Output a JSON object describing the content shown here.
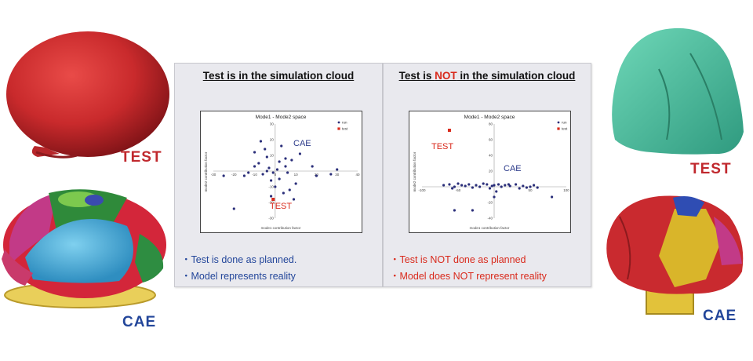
{
  "labels": {
    "left_test": "TEST",
    "left_cae": "CAE",
    "right_test": "TEST",
    "right_cae": "CAE"
  },
  "panels": [
    {
      "title_pre": "Test is in the simulation cloud",
      "title_hl": "",
      "title_post": "",
      "bullets": [
        "・Test is done as planned.",
        "・Model represents reality"
      ]
    },
    {
      "title_pre": "Test is ",
      "title_hl": "NOT",
      "title_post": " in the simulation cloud",
      "bullets": [
        "・Test is NOT done as planned",
        "・Model does NOT represent reality"
      ]
    }
  ],
  "chart_data": [
    {
      "type": "scatter",
      "title": "Mode1 - Mode2 space",
      "xlabel": "mode1 contribution factor",
      "ylabel": "mode2 contribution factor",
      "xlim": [
        -30,
        40
      ],
      "ylim": [
        -30,
        30
      ],
      "xticks": [
        -30,
        -20,
        -10,
        0,
        10,
        20,
        30,
        40
      ],
      "yticks": [
        -30,
        -20,
        -10,
        10,
        20,
        30
      ],
      "legend": [
        "run",
        "test"
      ],
      "legend_position": "top-right",
      "annotations": [
        "CAE",
        "TEST"
      ],
      "colors": {
        "run": "#2b2f7a",
        "test": "#d92a1c",
        "cae_label": "#2b3a8a",
        "test_label": "#d92a1c"
      },
      "series": [
        {
          "name": "run",
          "x": [
            -25,
            -13,
            -10,
            -8,
            -6,
            -4,
            -3,
            -2,
            -1,
            1,
            2,
            3,
            -10,
            -7,
            -5,
            -4,
            0,
            4,
            5,
            6,
            8,
            12,
            18,
            20,
            27,
            30,
            -20,
            -15,
            -2,
            2,
            5,
            7,
            9,
            10
          ],
          "y": [
            -3,
            -1,
            3,
            5,
            -2,
            9,
            2,
            -6,
            -1,
            1,
            6,
            16,
            12,
            19,
            14,
            0,
            -10,
            -14,
            3,
            -1,
            7,
            11,
            3,
            -3,
            -2,
            1,
            -24,
            -3,
            -16,
            -5,
            8,
            -12,
            -18,
            -8
          ]
        },
        {
          "name": "test",
          "x": [
            -1
          ],
          "y": [
            -18
          ]
        }
      ]
    },
    {
      "type": "scatter",
      "title": "Mode1 - Mode2 space",
      "xlabel": "mode1 contribution factor",
      "ylabel": "mode2 contribution factor",
      "xlim": [
        -100,
        100
      ],
      "ylim": [
        -40,
        80
      ],
      "xticks": [
        -100,
        -50,
        50,
        100
      ],
      "yticks": [
        -40,
        -20,
        20,
        40,
        60,
        80
      ],
      "legend": [
        "run",
        "test"
      ],
      "legend_position": "top-right",
      "annotations": [
        "TEST",
        "CAE"
      ],
      "colors": {
        "run": "#2b2f7a",
        "test": "#d92a1c",
        "cae_label": "#2b3a8a",
        "test_label": "#d92a1c"
      },
      "series": [
        {
          "name": "run",
          "x": [
            -70,
            -62,
            -58,
            -55,
            -50,
            -45,
            -40,
            -35,
            -30,
            -25,
            -20,
            -15,
            -10,
            -6,
            -3,
            0,
            3,
            6,
            10,
            15,
            22,
            30,
            35,
            40,
            45,
            50,
            55,
            60,
            -55,
            -30,
            0,
            20,
            80
          ],
          "y": [
            2,
            3,
            -2,
            0,
            4,
            2,
            1,
            3,
            -1,
            2,
            0,
            4,
            3,
            -2,
            1,
            2,
            -6,
            3,
            0,
            2,
            1,
            3,
            -2,
            1,
            -1,
            0,
            2,
            -1,
            -30,
            -30,
            -13,
            3,
            -13
          ]
        },
        {
          "name": "test",
          "x": [
            -62
          ],
          "y": [
            72
          ]
        }
      ]
    }
  ]
}
